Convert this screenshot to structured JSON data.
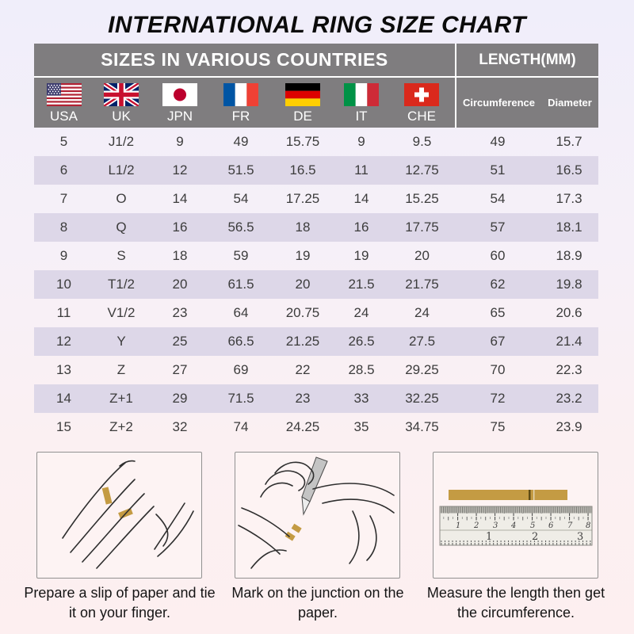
{
  "title": "INTERNATIONAL RING SIZE CHART",
  "table": {
    "section_headers": [
      "SIZES IN VARIOUS COUNTRIES",
      "LENGTH(MM)"
    ],
    "country_columns": [
      {
        "code": "USA",
        "flag_icon": "usa-flag-icon"
      },
      {
        "code": "UK",
        "flag_icon": "uk-flag-icon"
      },
      {
        "code": "JPN",
        "flag_icon": "japan-flag-icon"
      },
      {
        "code": "FR",
        "flag_icon": "france-flag-icon"
      },
      {
        "code": "DE",
        "flag_icon": "germany-flag-icon"
      },
      {
        "code": "IT",
        "flag_icon": "italy-flag-icon"
      },
      {
        "code": "CHE",
        "flag_icon": "switzerland-flag-icon"
      }
    ],
    "length_columns": [
      "Circumference",
      "Diameter"
    ],
    "rows": [
      [
        "5",
        "J1/2",
        "9",
        "49",
        "15.75",
        "9",
        "9.5",
        "49",
        "15.7"
      ],
      [
        "6",
        "L1/2",
        "12",
        "51.5",
        "16.5",
        "11",
        "12.75",
        "51",
        "16.5"
      ],
      [
        "7",
        "O",
        "14",
        "54",
        "17.25",
        "14",
        "15.25",
        "54",
        "17.3"
      ],
      [
        "8",
        "Q",
        "16",
        "56.5",
        "18",
        "16",
        "17.75",
        "57",
        "18.1"
      ],
      [
        "9",
        "S",
        "18",
        "59",
        "19",
        "19",
        "20",
        "60",
        "18.9"
      ],
      [
        "10",
        "T1/2",
        "20",
        "61.5",
        "20",
        "21.5",
        "21.75",
        "62",
        "19.8"
      ],
      [
        "11",
        "V1/2",
        "23",
        "64",
        "20.75",
        "24",
        "24",
        "65",
        "20.6"
      ],
      [
        "12",
        "Y",
        "25",
        "66.5",
        "21.25",
        "26.5",
        "27.5",
        "67",
        "21.4"
      ],
      [
        "13",
        "Z",
        "27",
        "69",
        "22",
        "28.5",
        "29.25",
        "70",
        "22.3"
      ],
      [
        "14",
        "Z+1",
        "29",
        "71.5",
        "23",
        "33",
        "32.25",
        "72",
        "23.2"
      ],
      [
        "15",
        "Z+2",
        "32",
        "74",
        "24.25",
        "35",
        "34.75",
        "75",
        "23.9"
      ]
    ]
  },
  "instructions": [
    {
      "illustration": "hand-with-paper-strip",
      "caption": "Prepare a slip of paper and tie it on your finger."
    },
    {
      "illustration": "pen-marking-junction",
      "caption": "Mark on the junction on the paper."
    },
    {
      "illustration": "ruler-measuring-strip",
      "caption": "Measure the length then get the circumference."
    }
  ],
  "ruler": {
    "cm": [
      "1",
      "2",
      "3",
      "4",
      "5",
      "6",
      "7",
      "8"
    ],
    "inch": [
      "1",
      "2",
      "3"
    ]
  },
  "colors": {
    "header_gray": "#7f7d7f",
    "row_shade": "#ddd7e8",
    "paper_strip_gold": "#c49b43",
    "background_top": "#f0eefa",
    "background_bottom": "#fdeff0"
  }
}
